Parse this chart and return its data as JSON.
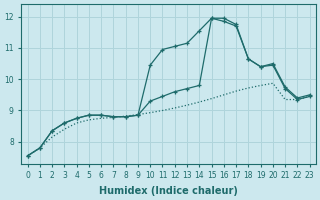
{
  "xlabel": "Humidex (Indice chaleur)",
  "bg_color": "#cce8ee",
  "grid_color": "#afd4db",
  "line_color": "#1e6b6b",
  "xlim": [
    -0.5,
    23.5
  ],
  "ylim": [
    7.3,
    12.4
  ],
  "yticks": [
    8,
    9,
    10,
    11,
    12
  ],
  "xticks": [
    0,
    1,
    2,
    3,
    4,
    5,
    6,
    7,
    8,
    9,
    10,
    11,
    12,
    13,
    14,
    15,
    16,
    17,
    18,
    19,
    20,
    21,
    22,
    23
  ],
  "line1_x": [
    0,
    1,
    2,
    3,
    4,
    5,
    6,
    7,
    8,
    9,
    10,
    11,
    12,
    13,
    14,
    15,
    16,
    17,
    18,
    19,
    20,
    21,
    22,
    23
  ],
  "line1_y": [
    7.55,
    7.8,
    8.35,
    8.6,
    8.75,
    8.85,
    8.85,
    8.8,
    8.8,
    8.85,
    10.45,
    10.95,
    11.05,
    11.15,
    11.55,
    11.95,
    11.85,
    11.7,
    10.65,
    10.4,
    10.45,
    9.7,
    9.35,
    9.45
  ],
  "line2_x": [
    0,
    1,
    2,
    3,
    4,
    5,
    6,
    7,
    8,
    9,
    10,
    11,
    12,
    13,
    14,
    15,
    16,
    17,
    18,
    19,
    20,
    21,
    22,
    23
  ],
  "line2_y": [
    7.55,
    7.8,
    8.35,
    8.6,
    8.75,
    8.85,
    8.85,
    8.8,
    8.8,
    8.85,
    9.3,
    9.45,
    9.6,
    9.7,
    9.8,
    11.95,
    11.95,
    11.75,
    10.65,
    10.4,
    10.5,
    9.75,
    9.4,
    9.5
  ],
  "line3_x": [
    0,
    1,
    2,
    3,
    4,
    5,
    6,
    7,
    8,
    9,
    10,
    11,
    12,
    13,
    14,
    15,
    16,
    17,
    18,
    19,
    20,
    21,
    22,
    23
  ],
  "line3_y": [
    7.55,
    7.8,
    8.15,
    8.4,
    8.6,
    8.7,
    8.75,
    8.78,
    8.82,
    8.87,
    8.93,
    9.0,
    9.08,
    9.17,
    9.27,
    9.38,
    9.5,
    9.62,
    9.72,
    9.8,
    9.87,
    9.35,
    9.35,
    9.45
  ]
}
